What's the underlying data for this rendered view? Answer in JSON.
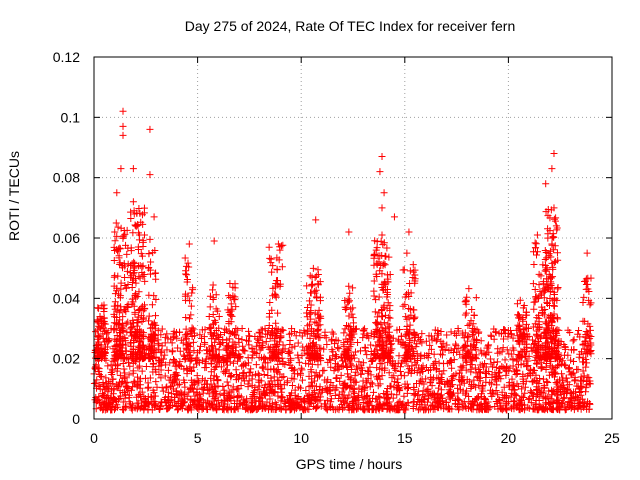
{
  "chart_data": {
    "type": "scatter",
    "title": "Day 275 of 2024, Rate Of TEC Index for receiver fern",
    "xlabel": "GPS time / hours",
    "ylabel": "ROTI / TECUs",
    "xlim": [
      0,
      25
    ],
    "ylim": [
      0,
      0.12
    ],
    "x_ticks": [
      0,
      5,
      10,
      15,
      20,
      25
    ],
    "x_tick_labels": [
      "0",
      "5",
      "10",
      "15",
      "20",
      "25"
    ],
    "y_ticks": [
      0,
      0.02,
      0.04,
      0.06,
      0.08,
      0.1,
      0.12
    ],
    "y_tick_labels": [
      "0",
      "0.02",
      "0.04",
      "0.06",
      "0.08",
      "0.1",
      "0.12"
    ],
    "grid": true,
    "marker": "+",
    "color": "#ff0000",
    "series": [
      {
        "name": "ROTI",
        "notable_points": [
          {
            "x": 1.4,
            "y": 0.102
          },
          {
            "x": 1.4,
            "y": 0.097
          },
          {
            "x": 1.4,
            "y": 0.094
          },
          {
            "x": 2.7,
            "y": 0.096
          },
          {
            "x": 1.3,
            "y": 0.083
          },
          {
            "x": 1.9,
            "y": 0.083
          },
          {
            "x": 2.7,
            "y": 0.081
          },
          {
            "x": 1.1,
            "y": 0.075
          },
          {
            "x": 1.9,
            "y": 0.072
          },
          {
            "x": 2.9,
            "y": 0.067
          },
          {
            "x": 1.0,
            "y": 0.062
          },
          {
            "x": 2.2,
            "y": 0.061
          },
          {
            "x": 5.8,
            "y": 0.059
          },
          {
            "x": 4.6,
            "y": 0.058
          },
          {
            "x": 8.9,
            "y": 0.058
          },
          {
            "x": 10.7,
            "y": 0.066
          },
          {
            "x": 12.3,
            "y": 0.062
          },
          {
            "x": 13.9,
            "y": 0.087
          },
          {
            "x": 13.8,
            "y": 0.082
          },
          {
            "x": 14.0,
            "y": 0.075
          },
          {
            "x": 13.9,
            "y": 0.07
          },
          {
            "x": 14.5,
            "y": 0.067
          },
          {
            "x": 13.9,
            "y": 0.061
          },
          {
            "x": 15.2,
            "y": 0.062
          },
          {
            "x": 15.1,
            "y": 0.055
          },
          {
            "x": 22.2,
            "y": 0.088
          },
          {
            "x": 22.1,
            "y": 0.083
          },
          {
            "x": 21.8,
            "y": 0.078
          },
          {
            "x": 22.2,
            "y": 0.07
          },
          {
            "x": 21.4,
            "y": 0.061
          },
          {
            "x": 22.1,
            "y": 0.058
          },
          {
            "x": 23.8,
            "y": 0.055
          }
        ],
        "bursts": [
          {
            "center": 0.3,
            "width": 0.25,
            "ymin": 0.02,
            "ymax": 0.038,
            "count": 70
          },
          {
            "center": 1.3,
            "width": 0.35,
            "ymin": 0.02,
            "ymax": 0.065,
            "count": 130
          },
          {
            "center": 2.1,
            "width": 0.35,
            "ymin": 0.02,
            "ymax": 0.07,
            "count": 150
          },
          {
            "center": 2.8,
            "width": 0.2,
            "ymin": 0.02,
            "ymax": 0.06,
            "count": 60
          },
          {
            "center": 4.6,
            "width": 0.2,
            "ymin": 0.02,
            "ymax": 0.055,
            "count": 40
          },
          {
            "center": 5.8,
            "width": 0.25,
            "ymin": 0.02,
            "ymax": 0.045,
            "count": 40
          },
          {
            "center": 6.6,
            "width": 0.25,
            "ymin": 0.02,
            "ymax": 0.046,
            "count": 50
          },
          {
            "center": 8.8,
            "width": 0.35,
            "ymin": 0.02,
            "ymax": 0.058,
            "count": 70
          },
          {
            "center": 10.6,
            "width": 0.35,
            "ymin": 0.02,
            "ymax": 0.05,
            "count": 90
          },
          {
            "center": 12.3,
            "width": 0.25,
            "ymin": 0.02,
            "ymax": 0.045,
            "count": 50
          },
          {
            "center": 13.9,
            "width": 0.4,
            "ymin": 0.02,
            "ymax": 0.06,
            "count": 150
          },
          {
            "center": 15.2,
            "width": 0.3,
            "ymin": 0.02,
            "ymax": 0.055,
            "count": 70
          },
          {
            "center": 18.2,
            "width": 0.3,
            "ymin": 0.02,
            "ymax": 0.045,
            "count": 50
          },
          {
            "center": 20.7,
            "width": 0.3,
            "ymin": 0.02,
            "ymax": 0.04,
            "count": 50
          },
          {
            "center": 21.5,
            "width": 0.3,
            "ymin": 0.02,
            "ymax": 0.06,
            "count": 80
          },
          {
            "center": 22.1,
            "width": 0.35,
            "ymin": 0.02,
            "ymax": 0.07,
            "count": 170
          },
          {
            "center": 23.8,
            "width": 0.2,
            "ymin": 0.02,
            "ymax": 0.05,
            "count": 40
          }
        ],
        "baseline": {
          "xmin": 0,
          "xmax": 24,
          "ymin": 0.003,
          "ymax": 0.03,
          "count": 2600
        }
      }
    ]
  }
}
